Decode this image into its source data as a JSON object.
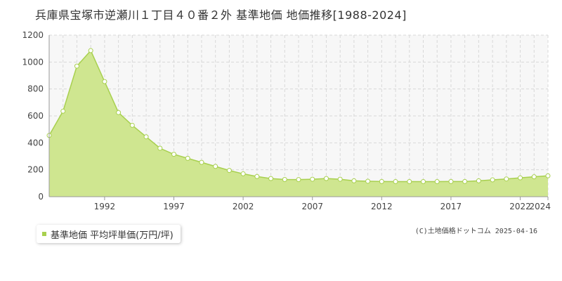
{
  "title": "兵庫県宝塚市逆瀬川１丁目４０番２外 基準地価 地価推移[1988-2024]",
  "legend": {
    "label": "基準地価 平均坪単価(万円/坪)"
  },
  "copyright": "(C)土地価格ドットコム 2025-04-16",
  "colors": {
    "area_fill": "#cfe690",
    "line": "#a8d04f",
    "marker_fill": "#ffffff",
    "plot_bg": "#f7f7f7"
  },
  "chart_data": {
    "type": "area",
    "title": "兵庫県宝塚市逆瀬川１丁目４０番２外 基準地価 地価推移[1988-2024]",
    "x": [
      1988,
      1989,
      1990,
      1991,
      1992,
      1993,
      1994,
      1995,
      1996,
      1997,
      1998,
      1999,
      2000,
      2001,
      2002,
      2003,
      2004,
      2005,
      2006,
      2007,
      2008,
      2009,
      2010,
      2011,
      2012,
      2013,
      2014,
      2015,
      2016,
      2017,
      2018,
      2019,
      2020,
      2021,
      2022,
      2023,
      2024
    ],
    "series": [
      {
        "name": "基準地価 平均坪単価(万円/坪)",
        "values": [
          455,
          635,
          970,
          1085,
          855,
          625,
          530,
          445,
          360,
          315,
          285,
          255,
          225,
          195,
          170,
          150,
          135,
          128,
          127,
          130,
          135,
          130,
          118,
          115,
          113,
          112,
          112,
          112,
          112,
          113,
          113,
          118,
          125,
          132,
          140,
          148,
          155
        ]
      }
    ],
    "xticks": [
      "1992",
      "1997",
      "2002",
      "2007",
      "2012",
      "2017",
      "2022",
      "2024"
    ],
    "yticks": [
      "0",
      "200",
      "400",
      "600",
      "800",
      "1000",
      "1200"
    ],
    "xlim": [
      1988,
      2024
    ],
    "ylim": [
      0,
      1200
    ],
    "grid": true,
    "legend_position": "bottom-left"
  }
}
